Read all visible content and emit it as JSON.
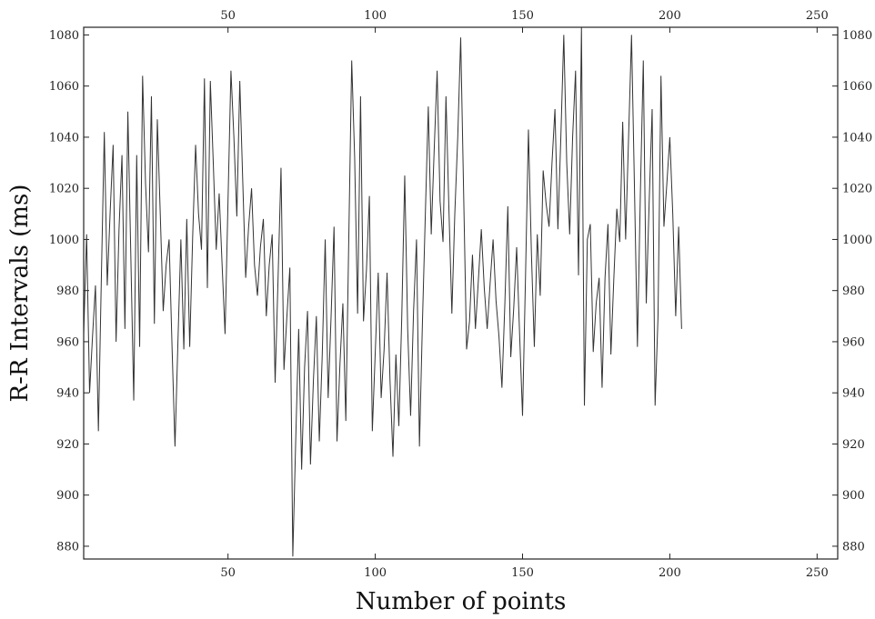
{
  "chart_data": {
    "type": "line",
    "xlabel": "Number of points",
    "ylabel": "R-R Intervals (ms)",
    "xlim": [
      1,
      257
    ],
    "ylim": [
      875,
      1083
    ],
    "x_ticks": [
      50,
      100,
      150,
      200,
      250
    ],
    "y_ticks": [
      880,
      900,
      920,
      940,
      960,
      980,
      1000,
      1020,
      1040,
      1060,
      1080
    ],
    "grid": false,
    "line_color": "#333333",
    "series": [
      {
        "x_start": 1,
        "values": [
          963,
          1002,
          940,
          962,
          982,
          925,
          985,
          1042,
          982,
          1011,
          1037,
          960,
          1004,
          1033,
          965,
          1050,
          994,
          937,
          1033,
          958,
          1064,
          1022,
          995,
          1056,
          967,
          1047,
          1010,
          972,
          990,
          1000,
          958,
          919,
          960,
          1000,
          957,
          1008,
          958,
          1001,
          1037,
          1010,
          996,
          1063,
          981,
          1062,
          1030,
          996,
          1018,
          990,
          963,
          1015,
          1066,
          1040,
          1009,
          1062,
          1023,
          985,
          1005,
          1020,
          990,
          978,
          997,
          1008,
          970,
          990,
          1002,
          944,
          985,
          1028,
          949,
          970,
          989,
          876,
          922,
          965,
          910,
          950,
          972,
          912,
          945,
          970,
          921,
          955,
          1000,
          938,
          970,
          1005,
          921,
          951,
          975,
          929,
          1000,
          1070,
          1032,
          971,
          1056,
          968,
          988,
          1017,
          925,
          956,
          987,
          938,
          957,
          987,
          945,
          915,
          955,
          927,
          970,
          1025,
          965,
          931,
          972,
          1000,
          919,
          967,
          1010,
          1052,
          1002,
          1035,
          1066,
          1015,
          999,
          1056,
          1012,
          971,
          1010,
          1040,
          1079,
          1018,
          957,
          968,
          994,
          965,
          984,
          1004,
          981,
          965,
          983,
          1000,
          976,
          962,
          942,
          975,
          1013,
          954,
          973,
          997,
          963,
          931,
          985,
          1043,
          995,
          958,
          1002,
          978,
          1027,
          1014,
          1005,
          1030,
          1051,
          1004,
          1040,
          1080,
          1030,
          1002,
          1040,
          1066,
          986,
          1083,
          935,
          1000,
          1006,
          956,
          975,
          985,
          942,
          985,
          1006,
          955,
          985,
          1012,
          999,
          1046,
          1000,
          1040,
          1080,
          1020,
          958,
          1018,
          1070,
          975,
          1015,
          1051,
          935,
          970,
          1064,
          1005,
          1022,
          1040,
          1010,
          970,
          1005,
          965
        ]
      }
    ]
  }
}
